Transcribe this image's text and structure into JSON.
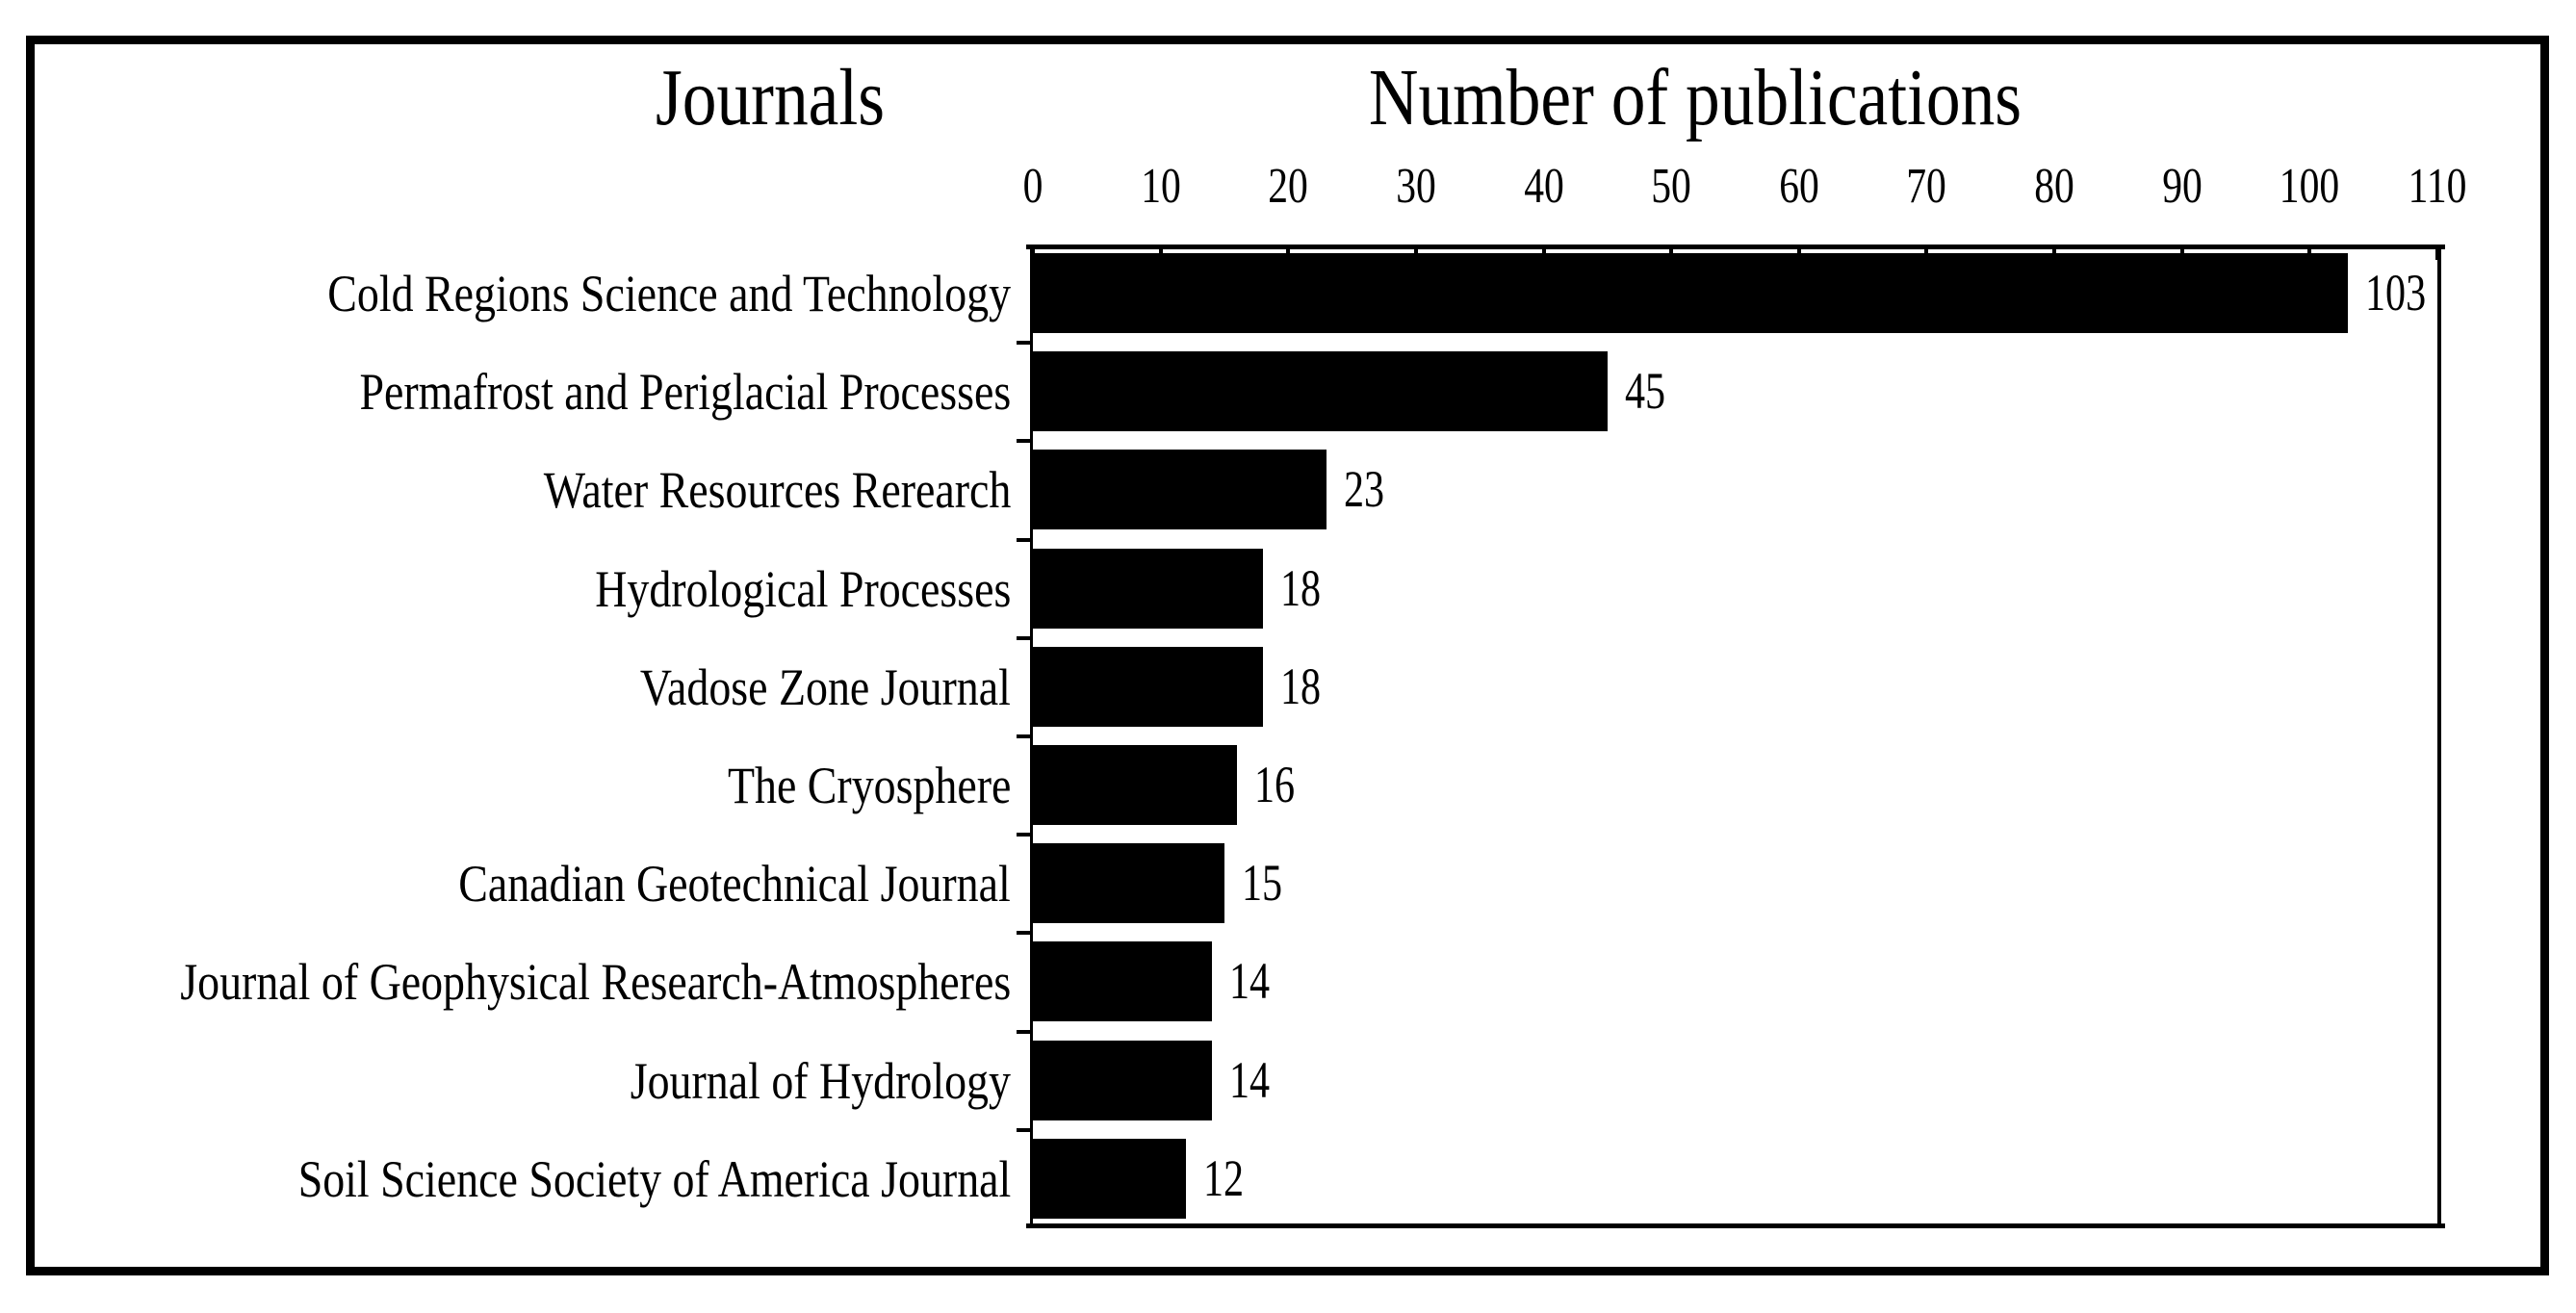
{
  "page": {
    "background_color": "#ffffff",
    "frame_color": "#000000"
  },
  "header": {
    "left_title": "Journals",
    "right_title": "Number of publications"
  },
  "chart_data": {
    "type": "bar",
    "orientation": "horizontal",
    "title": "Number of publications",
    "categories_title": "Journals",
    "categories": [
      "Cold Regions Science and Technology",
      "Permafrost and Periglacial Processes",
      "Water Resources Rerearch",
      "Hydrological Processes",
      "Vadose Zone Journal",
      "The Cryosphere",
      "Canadian Geotechnical Journal",
      "Journal of Geophysical Research-Atmospheres",
      "Journal of Hydrology",
      "Soil Science Society of America Journal"
    ],
    "values": [
      103,
      45,
      23,
      18,
      18,
      16,
      15,
      14,
      14,
      12
    ],
    "x_ticks": [
      0,
      10,
      20,
      30,
      40,
      50,
      60,
      70,
      80,
      90,
      100,
      110
    ],
    "xlim": [
      0,
      110
    ],
    "axis_position": "top",
    "bar_color": "#000000",
    "value_labels_shown": true,
    "grid": false,
    "legend": false
  }
}
